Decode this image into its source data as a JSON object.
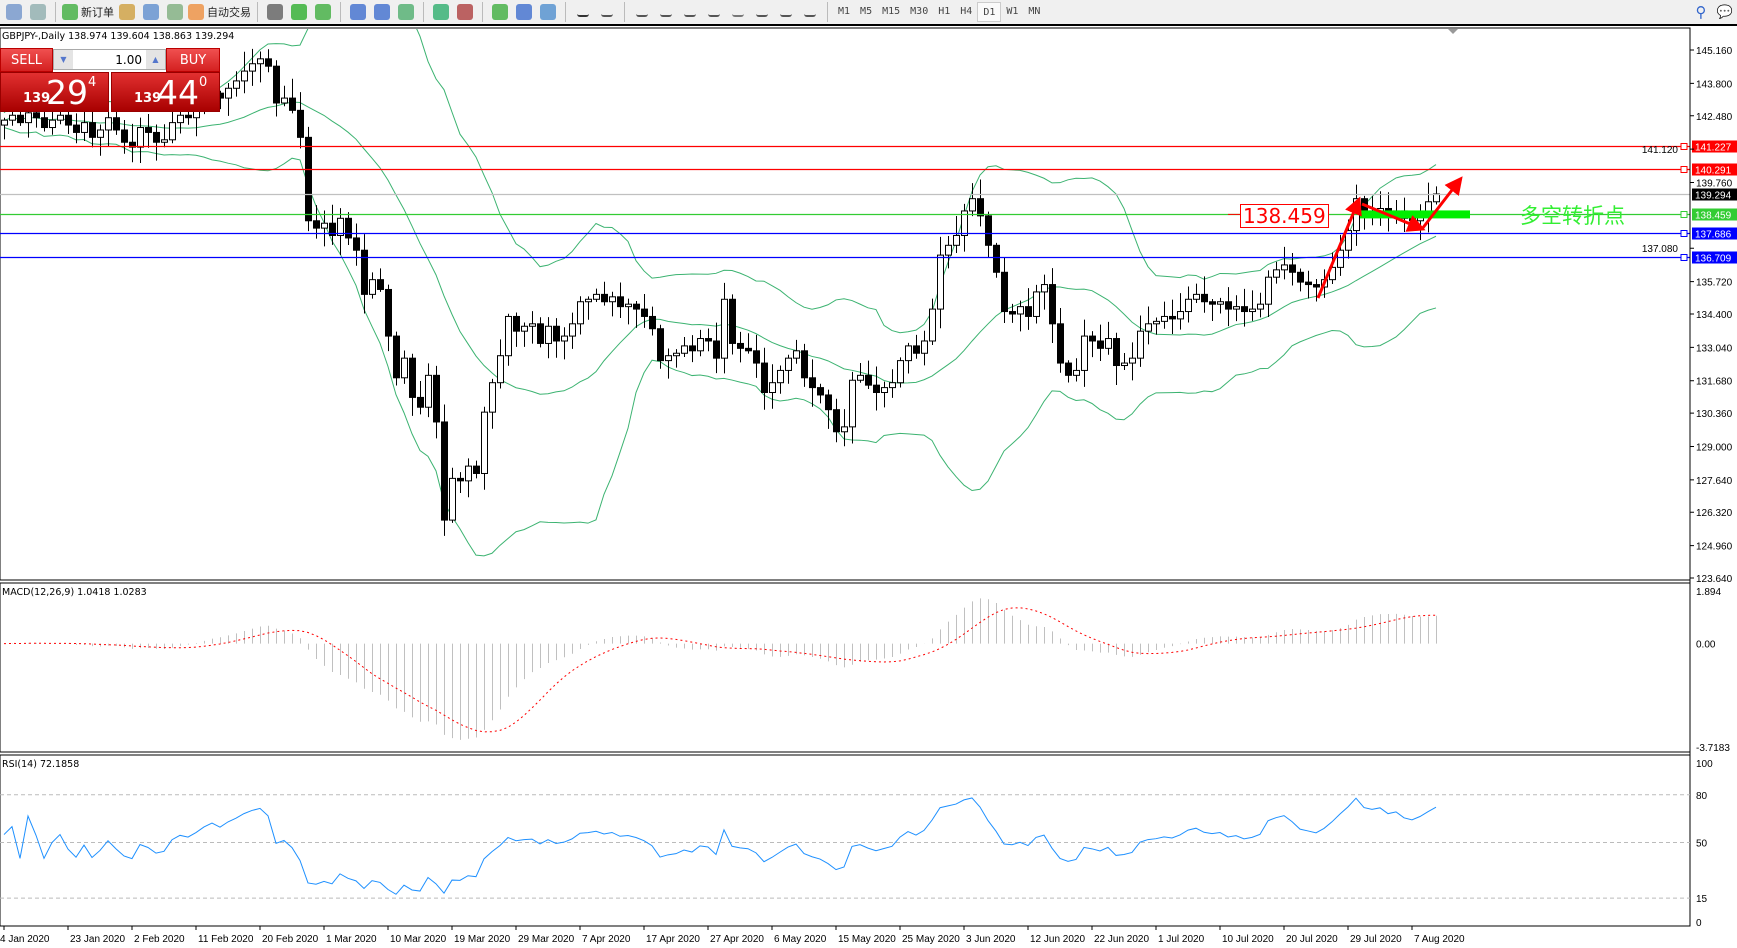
{
  "toolbar": {
    "new_order": "新订单",
    "auto_trading": "自动交易",
    "timeframes": [
      "M1",
      "M5",
      "M15",
      "M30",
      "H1",
      "H4",
      "D1",
      "W1",
      "MN"
    ],
    "active_timeframe": "D1",
    "icons": [
      "window-icon",
      "zoom-doc-icon",
      "new-order-icon",
      "gold-icon",
      "market-watch-icon",
      "signal-icon",
      "auto-trading-icon",
      "bar-chart-icon",
      "candle-chart-icon",
      "line-chart-icon",
      "zoom-in-icon",
      "zoom-out-icon",
      "tile-icon",
      "autoscroll-icon",
      "chart-shift-icon",
      "indicators-icon",
      "periods-icon",
      "templates-icon",
      "cursor-icon",
      "crosshair-icon",
      "vertical-line-icon",
      "horizontal-line-icon",
      "trend-line-icon",
      "fibo-icon",
      "grid-icon",
      "text-icon",
      "label-icon",
      "arrows-icon"
    ],
    "text_tool": "A"
  },
  "chart": {
    "title": "GBPJPY-,Daily  138.974 139.604 138.863 139.294",
    "symbol": "GBPJPY-",
    "period": "Daily",
    "last_bar": {
      "open": 138.974,
      "high": 139.604,
      "low": 138.863,
      "close": 139.294
    }
  },
  "trade_panel": {
    "sell_label": "SELL",
    "buy_label": "BUY",
    "lot": "1.00",
    "sell_prefix": "139",
    "sell_big": "29",
    "sell_sup": "4",
    "buy_prefix": "139",
    "buy_big": "44",
    "buy_sup": "0"
  },
  "price_axis": {
    "labels": [
      "145.160",
      "143.800",
      "142.480",
      "141.120",
      "139.760",
      "137.080",
      "135.720",
      "134.400",
      "133.040",
      "131.680",
      "130.360",
      "129.000",
      "127.640",
      "126.320",
      "124.960",
      "123.640"
    ],
    "min": 123.64,
    "max": 145.16
  },
  "hlines": [
    {
      "price": "141.227",
      "color": "#ff0000"
    },
    {
      "price": "140.291",
      "color": "#ff0000"
    },
    {
      "price": "139.294",
      "color": "#c0c0c0",
      "bg": "#000000"
    },
    {
      "price": "138.459",
      "color": "#33cc33"
    },
    {
      "price": "137.686",
      "color": "#0000ff"
    },
    {
      "price": "136.709",
      "color": "#0000ff"
    }
  ],
  "annotation": {
    "price_label": "138.459",
    "text": "多空转折点",
    "text_color": "#33ee33",
    "arrow_color": "#ff0000"
  },
  "closes": [
    142.3,
    142.5,
    142.2,
    142.6,
    142.4,
    142.0,
    142.3,
    142.5,
    142.1,
    141.8,
    142.2,
    141.6,
    141.9,
    142.4,
    141.9,
    141.4,
    141.2,
    142.0,
    141.8,
    141.4,
    141.5,
    142.2,
    142.5,
    142.4,
    142.7,
    143.1,
    143.4,
    143.2,
    143.6,
    143.9,
    144.3,
    144.6,
    144.8,
    144.5,
    143.0,
    143.2,
    142.7,
    141.6,
    138.2,
    137.9,
    138.1,
    137.6,
    138.3,
    137.5,
    137.0,
    135.2,
    135.8,
    135.4,
    133.5,
    131.8,
    132.6,
    131.0,
    130.6,
    131.9,
    130.0,
    126.0,
    127.7,
    127.6,
    128.2,
    127.9,
    130.4,
    131.6,
    132.7,
    134.3,
    133.7,
    133.9,
    134.0,
    133.2,
    133.9,
    133.3,
    133.5,
    134.0,
    134.9,
    135.0,
    135.2,
    134.9,
    135.1,
    134.7,
    134.8,
    134.6,
    134.3,
    133.8,
    132.5,
    132.7,
    132.8,
    133.1,
    132.9,
    133.4,
    133.3,
    132.6,
    135.0,
    133.2,
    133.0,
    132.9,
    132.4,
    131.2,
    131.6,
    132.1,
    132.6,
    132.9,
    131.8,
    131.4,
    131.1,
    130.5,
    129.6,
    129.8,
    131.7,
    131.9,
    131.5,
    131.2,
    131.4,
    131.6,
    132.5,
    133.1,
    132.8,
    133.3,
    134.6,
    136.8,
    137.2,
    137.6,
    138.6,
    139.1,
    138.4,
    137.2,
    136.1,
    134.5,
    134.4,
    134.7,
    134.3,
    135.3,
    135.6,
    134.0,
    132.4,
    131.9,
    132.1,
    133.5,
    133.3,
    133.0,
    133.4,
    132.3,
    132.4,
    132.6,
    133.7,
    134.0,
    134.1,
    134.3,
    134.2,
    134.5,
    135.0,
    135.2,
    134.9,
    134.8,
    134.9,
    134.6,
    134.7,
    134.5,
    134.6,
    134.8,
    135.9,
    136.2,
    136.4,
    136.1,
    135.7,
    135.6,
    135.5,
    135.8,
    136.3,
    137.0,
    137.8,
    139.1,
    138.6,
    138.5,
    138.7,
    138.4,
    138.6,
    138.3,
    138.2,
    138.5,
    138.974,
    139.294
  ],
  "macd": {
    "title": "MACD(12,26,9) 1.0418 1.0283",
    "labels": [
      "1.894",
      "0.00",
      "-3.7183"
    ],
    "max": 1.894,
    "min": -3.7183,
    "hist_color": "#c0c0c0",
    "signal_color": "#ff0000"
  },
  "rsi": {
    "title": "RSI(14) 72.1858",
    "labels": [
      "100",
      "80",
      "50",
      "15",
      "0"
    ],
    "levels": [
      80,
      50,
      15
    ],
    "color": "#1e90ff"
  },
  "band_color": "#3cb371",
  "dates": [
    "4 Jan 2020",
    "23 Jan 2020",
    "2 Feb 2020",
    "11 Feb 2020",
    "20 Feb 2020",
    "1 Mar 2020",
    "10 Mar 2020",
    "19 Mar 2020",
    "29 Mar 2020",
    "7 Apr 2020",
    "17 Apr 2020",
    "27 Apr 2020",
    "6 May 2020",
    "15 May 2020",
    "25 May 2020",
    "3 Jun 2020",
    "12 Jun 2020",
    "22 Jun 2020",
    "1 Jul 2020",
    "10 Jul 2020",
    "20 Jul 2020",
    "29 Jul 2020",
    "7 Aug 2020"
  ]
}
